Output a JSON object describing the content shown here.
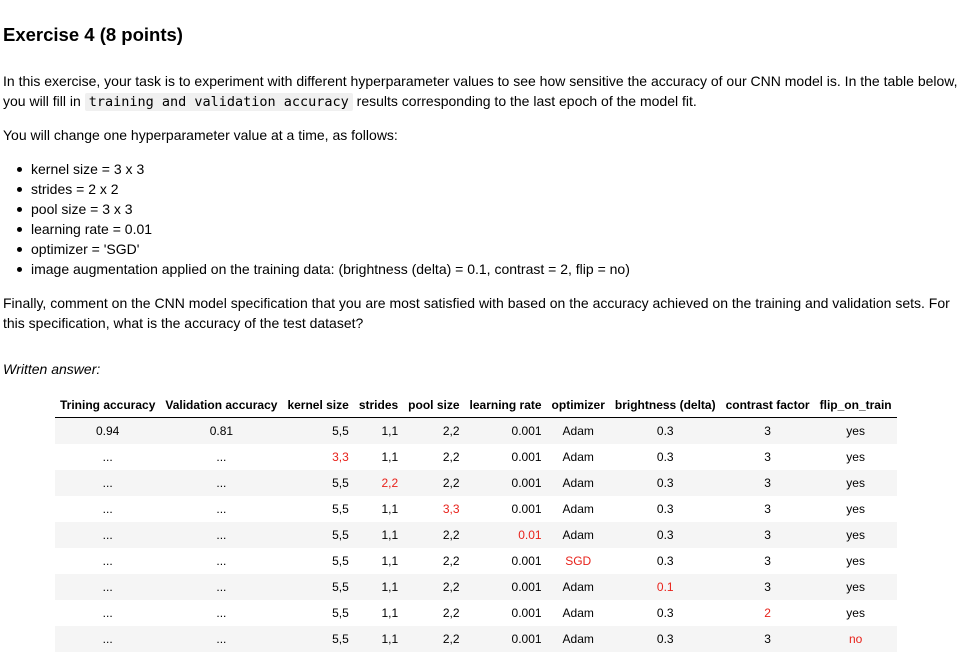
{
  "heading": "Exercise 4 (8 points)",
  "intro": {
    "part1": "In this exercise, your task is to experiment with different hyperparameter values to see how sensitive the accuracy of our CNN model is. In the table below, you will fill in ",
    "code": "training and validation accuracy",
    "part2": " results corresponding to the last epoch of the model fit."
  },
  "follow": "You will change one hyperparameter value at a time, as follows:",
  "bullets": [
    "kernel size = 3 x 3",
    "strides = 2 x 2",
    "pool size = 3 x 3",
    "learning rate = 0.01",
    "optimizer = 'SGD'",
    "image augmentation applied on the training data: (brightness (delta) = 0.1, contrast = 2, flip = no)"
  ],
  "finally": "Finally, comment on the CNN model specification that you are most satisfied with based on the accuracy achieved on the training and validation sets. For this specification, what is the accuracy of the test dataset?",
  "written_answer": "Written answer:",
  "colors": {
    "highlight": "#e8221b",
    "stripe": "#f5f5f5"
  },
  "table": {
    "headers": [
      "Trining accuracy",
      "Validation accuracy",
      "kernel size",
      "strides",
      "pool size",
      "learning rate",
      "optimizer",
      "brightness (delta)",
      "contrast factor",
      "flip_on_train"
    ],
    "rows": [
      [
        "0.94",
        "0.81",
        "5,5",
        "1,1",
        "2,2",
        "0.001",
        "Adam",
        "0.3",
        "3",
        "yes"
      ],
      [
        "...",
        "...",
        "3,3",
        "1,1",
        "2,2",
        "0.001",
        "Adam",
        "0.3",
        "3",
        "yes"
      ],
      [
        "...",
        "...",
        "5,5",
        "2,2",
        "2,2",
        "0.001",
        "Adam",
        "0.3",
        "3",
        "yes"
      ],
      [
        "...",
        "...",
        "5,5",
        "1,1",
        "3,3",
        "0.001",
        "Adam",
        "0.3",
        "3",
        "yes"
      ],
      [
        "...",
        "...",
        "5,5",
        "1,1",
        "2,2",
        "0.01",
        "Adam",
        "0.3",
        "3",
        "yes"
      ],
      [
        "...",
        "...",
        "5,5",
        "1,1",
        "2,2",
        "0.001",
        "SGD",
        "0.3",
        "3",
        "yes"
      ],
      [
        "...",
        "...",
        "5,5",
        "1,1",
        "2,2",
        "0.001",
        "Adam",
        "0.1",
        "3",
        "yes"
      ],
      [
        "...",
        "...",
        "5,5",
        "1,1",
        "2,2",
        "0.001",
        "Adam",
        "0.3",
        "2",
        "yes"
      ],
      [
        "...",
        "...",
        "5,5",
        "1,1",
        "2,2",
        "0.001",
        "Adam",
        "0.3",
        "3",
        "no"
      ]
    ],
    "highlighted": [
      null,
      2,
      3,
      4,
      5,
      6,
      7,
      8,
      9
    ]
  }
}
